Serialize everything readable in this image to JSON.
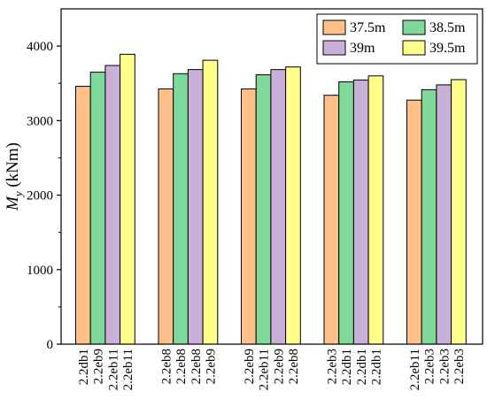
{
  "chart_data": {
    "type": "bar",
    "ylabel_main": "M",
    "ylabel_sub": "y",
    "ylabel_unit": " (kNm)",
    "xlabel": "",
    "ylim": [
      0,
      4500
    ],
    "yticks": [
      0,
      1000,
      2000,
      3000,
      4000
    ],
    "groups": [
      {
        "labels": [
          "2.2db1",
          "2.2eb9",
          "2.2eb11",
          "2.2eb11"
        ],
        "values": [
          3460,
          3650,
          3740,
          3890
        ]
      },
      {
        "labels": [
          "2.2eb8",
          "2.2eb8",
          "2.2eb8",
          "2.2eb9"
        ],
        "values": [
          3425,
          3630,
          3685,
          3810
        ]
      },
      {
        "labels": [
          "2.2eb9",
          "2.2eb11",
          "2.2eb9",
          "2.2eb8"
        ],
        "values": [
          3425,
          3615,
          3685,
          3720
        ]
      },
      {
        "labels": [
          "2.2eb3",
          "2.2db1",
          "2.2db1",
          "2.2db1"
        ],
        "values": [
          3340,
          3520,
          3545,
          3600
        ]
      },
      {
        "labels": [
          "2.2eb11",
          "2.2eb3",
          "2.2eb3",
          "2.2eb3"
        ],
        "values": [
          3275,
          3415,
          3480,
          3550
        ]
      }
    ],
    "series": [
      {
        "name": "37.5m",
        "color": "#FFC08A"
      },
      {
        "name": "38.5m",
        "color": "#7FD99A"
      },
      {
        "name": "39m",
        "color": "#C8B0DA"
      },
      {
        "name": "39.5m",
        "color": "#FFFF8A"
      }
    ],
    "legend": "top-right",
    "grid": false
  }
}
